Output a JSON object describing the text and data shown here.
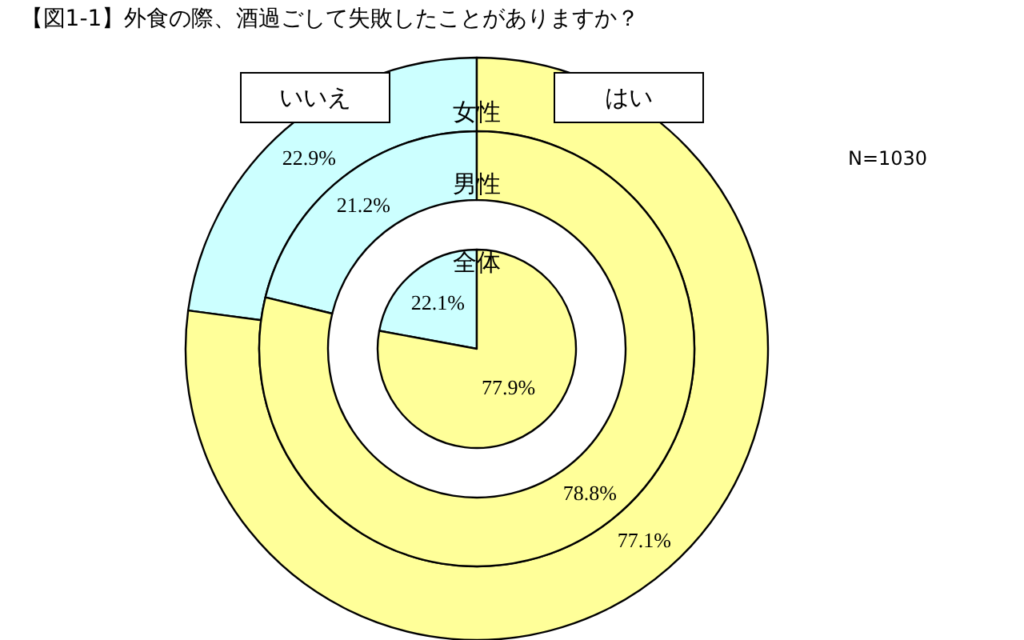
{
  "chart_data": [
    {
      "type": "donut",
      "title": "【図1-1】外食の際、酒過ごして失敗したことがありますか？",
      "categories": [
        "いいえ",
        "はい"
      ],
      "colors": [
        "#ccffff",
        "#ffff99"
      ],
      "series": [
        {
          "name": "女性",
          "values": [
            22.9,
            77.1
          ],
          "value_labels": [
            "22.9%",
            "77.1%"
          ]
        }
      ],
      "annotations": [
        "N=1030"
      ]
    },
    {
      "type": "donut",
      "categories": [
        null,
        null
      ],
      "colors": [
        "#ccffff",
        "#ffff99"
      ],
      "series": [
        {
          "name": "男性",
          "values": [
            21.2,
            78.8
          ],
          "value_labels": [
            "21.2%",
            "78.8%"
          ]
        }
      ]
    },
    {
      "type": "pie",
      "categories": [
        null,
        null
      ],
      "colors": [
        "#ccffff",
        "#ffff99"
      ],
      "series": [
        {
          "name": "全体",
          "values": [
            22.1,
            77.9
          ],
          "value_labels": [
            "22.1%",
            "77.9%"
          ]
        }
      ]
    }
  ]
}
